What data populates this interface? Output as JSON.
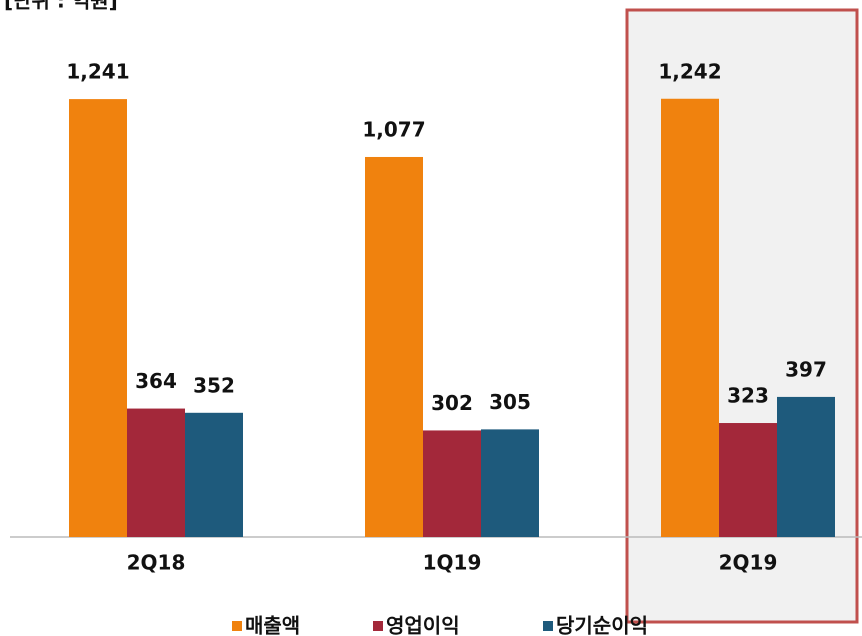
{
  "chart_data": {
    "type": "bar",
    "unit_label": "[단위 : 억원]",
    "categories": [
      "2Q18",
      "1Q19",
      "2Q19"
    ],
    "series": [
      {
        "name": "매출액",
        "color": "#f0820e",
        "values": [
          1241,
          1077,
          1242
        ],
        "value_labels": [
          "1,241",
          "1,077",
          "1,242"
        ]
      },
      {
        "name": "영업이익",
        "color": "#a3283a",
        "values": [
          364,
          302,
          323
        ]
      },
      {
        "name": "당기순이익",
        "color": "#1e5a7c",
        "values": [
          352,
          305,
          397
        ]
      }
    ],
    "ylim": [
      0,
      1400
    ],
    "highlight": 2,
    "legend": "bottom"
  }
}
